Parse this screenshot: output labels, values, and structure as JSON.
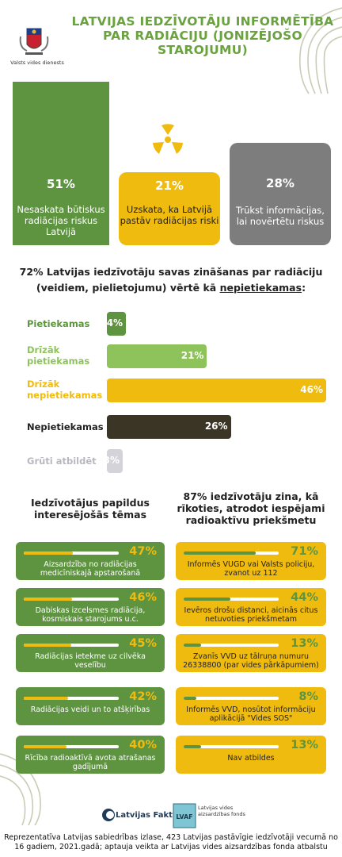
{
  "org": {
    "name": "Valsts vides dienests"
  },
  "title": "LATVIJAS IEDZĪVOTĀJU INFORMĒTĪBA PAR RADIĀCIJU (JONIZĒJOŠO STAROJUMU)",
  "colors": {
    "green": "#5e9440",
    "light_green": "#8dc35a",
    "yellow": "#f0bb0f",
    "gray": "#7d7d7d",
    "dark": "#3a3524",
    "light_gray": "#d3d3d9"
  },
  "top_boxes": [
    {
      "pct": "51%",
      "text": "Nesaskata būtiskus radiācijas riskus Latvijā"
    },
    {
      "pct": "21%",
      "text": "Uzskata, ka Latvijā pastāv radiācijas riski"
    },
    {
      "pct": "28%",
      "text": "Trūkst informācijas, lai novērtētu riskus"
    }
  ],
  "question": {
    "text": "72% Latvijas iedzīvotāju savas zināšanas par radiāciju (veidiem, pielietojumu) vērtē kā",
    "emph": "nepietiekamas",
    "end": ":"
  },
  "chart_data": {
    "type": "bar",
    "orientation": "horizontal",
    "categories": [
      "Pietiekamas",
      "Drīzāk pietiekamas",
      "Drīzāk nepietiekamas",
      "Nepietiekamas",
      "Grūti atbildēt"
    ],
    "values": [
      4,
      21,
      46,
      26,
      3
    ],
    "labels": [
      "4%",
      "21%",
      "46%",
      "26%",
      "3%"
    ]
  },
  "left_section": {
    "title": "Iedzīvotājus papildus interesējošās tēmas",
    "items": [
      {
        "pct": "47%",
        "value": 47,
        "text": "Aizsardzība no radiācijas medicīniskajā apstarošanā"
      },
      {
        "pct": "46%",
        "value": 46,
        "text": "Dabiskas izcelsmes radiācija, kosmiskais starojums u.c."
      },
      {
        "pct": "45%",
        "value": 45,
        "text": "Radiācijas ietekme uz cilvēka veselību"
      },
      {
        "pct": "42%",
        "value": 42,
        "text": "Radiācijas veidi un to atšķirības"
      },
      {
        "pct": "40%",
        "value": 40,
        "text": "Rīcība radioaktīvā avota atrašanas gadījumā"
      }
    ]
  },
  "right_section": {
    "title": "87% iedzīvotāju zina, kā rīkoties, atrodot iespējami radioaktīvu priekšmetu",
    "items": [
      {
        "pct": "71%",
        "value": 71,
        "text": "Informēs VUGD vai Valsts policiju, zvanot uz 112"
      },
      {
        "pct": "44%",
        "value": 44,
        "text": "Ievēros drošu distanci, aicinās citus netuvoties priekšmetam"
      },
      {
        "pct": "13%",
        "value": 13,
        "text": "Zvanīs VVD uz tālruņa numuru 26338800 (par vides pārkāpumiem)"
      },
      {
        "pct": "8%",
        "value": 8,
        "text": "Informēs VVD, nosūtot informāciju aplikācijā \"Vides SOS\""
      },
      {
        "pct": "13%",
        "value": 13,
        "text": "Nav atbildes"
      }
    ]
  },
  "brands": {
    "b1": "Latvijas Fakti",
    "b2": "Latvijas vides aizsardzības fonds"
  },
  "footer": "Reprezentatīva Latvijas sabiedrības izlase, 423 Latvijas pastāvīgie iedzīvotāji vecumā no 16 gadiem, 2021.gadā; aptauja veikta ar Latvijas vides aizsardzības fonda atbalstu"
}
